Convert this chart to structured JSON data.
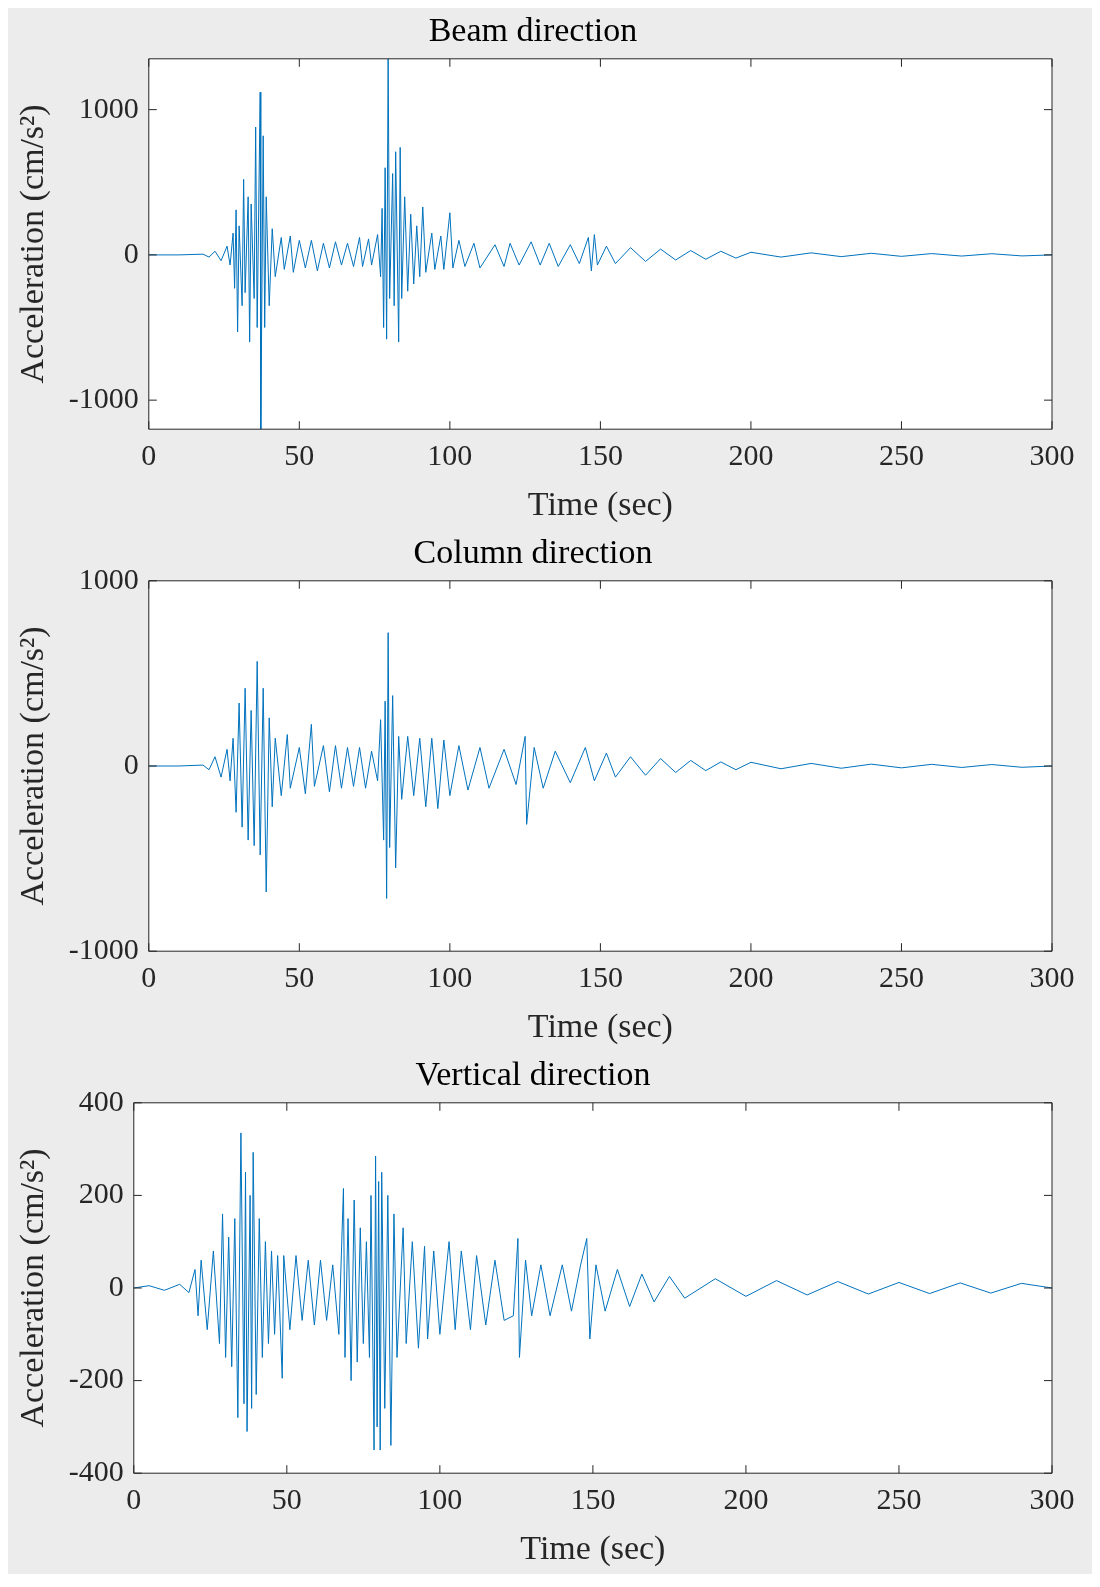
{
  "chart_data": [
    {
      "type": "line",
      "title": "Beam direction",
      "xlabel": "Time (sec)",
      "ylabel": "Acceleration (cm/s²)",
      "xlim": [
        0,
        300
      ],
      "xticks": [
        0,
        50,
        100,
        150,
        200,
        250,
        300
      ],
      "ylim": [
        -1200,
        1350
      ],
      "yticks": [
        -1000,
        0,
        1000
      ],
      "grid": false,
      "legend": false,
      "marker": "none",
      "line_style": "solid",
      "x": [
        0,
        10,
        18,
        20,
        22,
        24,
        26,
        27,
        28,
        28.5,
        29,
        29.5,
        30,
        31,
        31.5,
        32,
        33,
        33.5,
        34,
        35,
        35.5,
        36,
        37,
        37.2,
        38,
        38.5,
        39,
        40,
        41,
        42,
        44,
        45,
        47,
        48,
        50,
        52,
        54,
        56,
        58,
        60,
        62,
        64,
        66,
        68,
        70,
        71,
        73,
        74,
        76,
        77,
        77.5,
        78,
        78.5,
        79,
        79.5,
        80,
        81,
        81.5,
        82,
        83,
        83.5,
        84,
        85,
        86,
        87,
        88,
        89,
        90,
        91,
        92,
        94,
        95,
        97,
        98,
        100,
        101,
        103,
        105,
        108,
        110,
        115,
        118,
        120,
        123,
        127,
        130,
        133,
        136,
        140,
        143,
        146,
        147,
        148,
        149,
        152,
        155,
        160,
        165,
        170,
        175,
        180,
        185,
        190,
        195,
        200,
        210,
        220,
        230,
        240,
        250,
        260,
        270,
        280,
        290,
        300
      ],
      "series": [
        {
          "color": "#0072bd",
          "values": [
            0,
            0,
            5,
            -15,
            25,
            -40,
            60,
            -70,
            150,
            -230,
            310,
            -530,
            200,
            -350,
            520,
            -260,
            400,
            -600,
            350,
            -300,
            880,
            -500,
            1120,
            -1200,
            820,
            -500,
            400,
            -350,
            180,
            -150,
            120,
            -100,
            130,
            -120,
            100,
            -90,
            100,
            -110,
            80,
            -90,
            90,
            -70,
            80,
            -80,
            120,
            -80,
            110,
            -70,
            140,
            -150,
            320,
            -500,
            600,
            -580,
            1350,
            -300,
            560,
            -350,
            710,
            -600,
            740,
            -300,
            400,
            -250,
            280,
            -200,
            200,
            -150,
            330,
            -120,
            150,
            -100,
            130,
            -100,
            290,
            -90,
            100,
            -80,
            80,
            -90,
            70,
            -80,
            80,
            -70,
            90,
            -70,
            80,
            -80,
            70,
            -60,
            120,
            -110,
            140,
            -70,
            60,
            -60,
            50,
            -45,
            40,
            -35,
            30,
            -30,
            25,
            -22,
            18,
            -15,
            14,
            -12,
            11,
            -10,
            9,
            -8,
            8,
            -7,
            0
          ]
        }
      ]
    },
    {
      "type": "line",
      "title": "Column direction",
      "xlabel": "Time (sec)",
      "ylabel": "Acceleration (cm/s²)",
      "xlim": [
        0,
        300
      ],
      "xticks": [
        0,
        50,
        100,
        150,
        200,
        250,
        300
      ],
      "ylim": [
        -1000,
        1000
      ],
      "yticks": [
        -1000,
        0,
        1000
      ],
      "grid": false,
      "legend": false,
      "marker": "none",
      "line_style": "solid",
      "x": [
        0,
        10,
        18,
        20,
        22,
        24,
        26,
        27,
        28,
        29,
        30,
        31,
        32,
        33,
        34,
        35,
        36,
        37,
        38,
        39,
        40,
        41,
        42,
        44,
        46,
        47,
        50,
        52,
        54,
        55,
        58,
        60,
        62,
        64,
        66,
        68,
        70,
        72,
        74,
        76,
        77,
        78,
        78.5,
        79,
        79.5,
        80,
        81,
        82,
        83,
        84,
        86,
        88,
        90,
        92,
        94,
        96,
        98,
        100,
        103,
        106,
        110,
        113,
        118,
        122,
        125,
        125.5,
        128,
        131,
        135,
        140,
        145,
        148,
        152,
        155,
        160,
        165,
        170,
        175,
        180,
        185,
        190,
        195,
        200,
        210,
        220,
        230,
        240,
        250,
        260,
        270,
        280,
        290,
        300
      ],
      "series": [
        {
          "color": "#0072bd",
          "values": [
            0,
            0,
            5,
            -20,
            50,
            -60,
            90,
            -80,
            150,
            -250,
            340,
            -330,
            420,
            -400,
            300,
            -430,
            565,
            -480,
            420,
            -680,
            260,
            -220,
            150,
            -160,
            170,
            -120,
            100,
            -150,
            225,
            -110,
            110,
            -140,
            110,
            -120,
            100,
            -110,
            100,
            -120,
            80,
            -80,
            250,
            -400,
            350,
            -715,
            720,
            -440,
            380,
            -550,
            160,
            -180,
            160,
            -160,
            150,
            -220,
            150,
            -230,
            140,
            -160,
            110,
            -130,
            100,
            -120,
            90,
            -100,
            160,
            -315,
            100,
            -120,
            80,
            -90,
            100,
            -80,
            70,
            -60,
            50,
            -50,
            40,
            -35,
            30,
            -25,
            22,
            -20,
            20,
            -15,
            14,
            -12,
            10,
            -10,
            9,
            -8,
            8,
            -7,
            0
          ]
        }
      ]
    },
    {
      "type": "line",
      "title": "Vertical direction",
      "xlabel": "Time (sec)",
      "ylabel": "Acceleration (cm/s²)",
      "xlim": [
        0,
        300
      ],
      "xticks": [
        0,
        50,
        100,
        150,
        200,
        250,
        300
      ],
      "ylim": [
        -400,
        400
      ],
      "yticks": [
        -400,
        -200,
        0,
        200,
        400
      ],
      "grid": false,
      "legend": false,
      "marker": "none",
      "line_style": "solid",
      "x": [
        0,
        5,
        10,
        15,
        18,
        20,
        21,
        22,
        24,
        26,
        28,
        29,
        30,
        31,
        32,
        33,
        34,
        35,
        36,
        36.5,
        37,
        38,
        38.5,
        39,
        40,
        41,
        42,
        43,
        44,
        45,
        46,
        47,
        48.5,
        49,
        51,
        53,
        55,
        57,
        59,
        61,
        63,
        65,
        67,
        68.5,
        69,
        70,
        71,
        72,
        73,
        74,
        75,
        76,
        77,
        77.5,
        78.5,
        79,
        79.5,
        80,
        80.5,
        81,
        82,
        83,
        84,
        85,
        86,
        88,
        89,
        91,
        93,
        95,
        96,
        98,
        100,
        103,
        105,
        107,
        110,
        112,
        115,
        118,
        121,
        124,
        125.5,
        126,
        128,
        130,
        133,
        136,
        140,
        143,
        146,
        148,
        149,
        151,
        154,
        158,
        162,
        166,
        170,
        175,
        180,
        190,
        200,
        210,
        220,
        230,
        240,
        250,
        260,
        270,
        280,
        290,
        300
      ],
      "series": [
        {
          "color": "#0072bd",
          "values": [
            0,
            5,
            -5,
            8,
            -10,
            40,
            -60,
            60,
            -90,
            80,
            -120,
            160,
            -150,
            110,
            -170,
            150,
            -280,
            335,
            -250,
            250,
            -310,
            200,
            -260,
            293,
            -230,
            150,
            -150,
            100,
            -120,
            80,
            -100,
            70,
            -195,
            70,
            -90,
            70,
            -70,
            60,
            -80,
            60,
            -70,
            50,
            -100,
            215,
            -150,
            150,
            -200,
            190,
            -160,
            130,
            -120,
            100,
            -150,
            200,
            -350,
            285,
            -300,
            230,
            -350,
            250,
            -260,
            200,
            -340,
            160,
            -150,
            130,
            -120,
            100,
            -130,
            90,
            -110,
            80,
            -100,
            100,
            -90,
            80,
            -90,
            70,
            -80,
            60,
            -70,
            -60,
            107,
            -150,
            60,
            -60,
            50,
            -60,
            50,
            -50,
            50,
            107,
            -110,
            50,
            -50,
            40,
            -40,
            30,
            -30,
            25,
            -22,
            20,
            -18,
            16,
            -15,
            14,
            -13,
            12,
            -12,
            11,
            -11,
            10,
            0
          ]
        }
      ]
    }
  ]
}
